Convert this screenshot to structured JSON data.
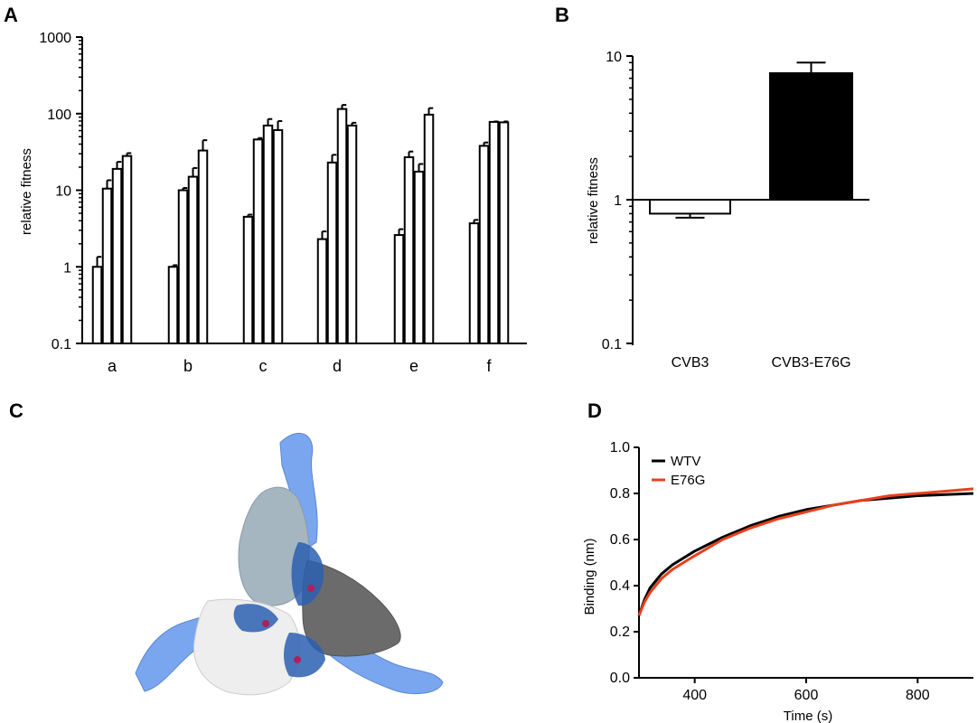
{
  "panel_labels": {
    "a": "A",
    "b": "B",
    "c": "C",
    "d": "D"
  },
  "chart_data": [
    {
      "id": "A",
      "type": "bar",
      "scale": "log",
      "ylabel": "relative fitness",
      "ylim": [
        0.1,
        1000
      ],
      "yticks": [
        {
          "v": 0.1,
          "label": "0.1"
        },
        {
          "v": 1,
          "label": "1"
        },
        {
          "v": 10,
          "label": "10"
        },
        {
          "v": 100,
          "label": "100"
        },
        {
          "v": 1000,
          "label": "1000"
        }
      ],
      "categories": [
        "a",
        "b",
        "c",
        "d",
        "e",
        "f"
      ],
      "groups": [
        {
          "values": [
            1.0,
            10.5,
            19,
            28
          ],
          "errors": [
            1.35,
            13.5,
            23.5,
            30.5
          ]
        },
        {
          "values": [
            1.0,
            10.0,
            15,
            33
          ],
          "errors": [
            1.05,
            10.7,
            19.5,
            45
          ]
        },
        {
          "values": [
            4.5,
            46,
            70,
            61
          ],
          "errors": [
            4.8,
            48,
            85,
            80
          ]
        },
        {
          "values": [
            2.3,
            23,
            115,
            70
          ],
          "errors": [
            2.9,
            29,
            130,
            76
          ]
        },
        {
          "values": [
            2.6,
            27,
            17.5,
            97
          ],
          "errors": [
            3.1,
            32,
            22,
            118
          ]
        },
        {
          "values": [
            3.7,
            38,
            78,
            77
          ],
          "errors": [
            4.1,
            42,
            79,
            79
          ]
        }
      ],
      "grid": false
    },
    {
      "id": "B",
      "type": "bar",
      "scale": "log",
      "ylabel": "relative fitness",
      "ylim": [
        0.1,
        10
      ],
      "baseline": 1,
      "yticks": [
        {
          "v": 0.1,
          "label": "0.1"
        },
        {
          "v": 1,
          "label": "1"
        },
        {
          "v": 10,
          "label": "10"
        }
      ],
      "categories": [
        "CVB3",
        "CVB3-E76G"
      ],
      "values": [
        0.8,
        7.6
      ],
      "errors": [
        0.75,
        9.0
      ],
      "colors": [
        "#ffffff",
        "#000000"
      ],
      "grid": false
    },
    {
      "id": "D",
      "type": "line",
      "xlabel": "Time (s)",
      "ylabel": "Binding (nm)",
      "xlim": [
        300,
        900
      ],
      "ylim": [
        0.0,
        1.0
      ],
      "xticks": [
        {
          "v": 400,
          "label": "400"
        },
        {
          "v": 600,
          "label": "600"
        },
        {
          "v": 800,
          "label": "800"
        }
      ],
      "yticks": [
        {
          "v": 0.0,
          "label": "0.0"
        },
        {
          "v": 0.2,
          "label": "0.2"
        },
        {
          "v": 0.4,
          "label": "0.4"
        },
        {
          "v": 0.6,
          "label": "0.6"
        },
        {
          "v": 0.8,
          "label": "0.8"
        },
        {
          "v": 1.0,
          "label": "1.0"
        }
      ],
      "legend_position": "top-left",
      "series": [
        {
          "name": "WTV",
          "color": "#000000",
          "x": [
            300,
            310,
            320,
            340,
            360,
            380,
            400,
            450,
            500,
            550,
            600,
            650,
            700,
            750,
            800,
            850,
            900
          ],
          "y": [
            0.27,
            0.34,
            0.39,
            0.45,
            0.49,
            0.52,
            0.55,
            0.61,
            0.66,
            0.7,
            0.73,
            0.75,
            0.77,
            0.78,
            0.79,
            0.795,
            0.8
          ]
        },
        {
          "name": "E76G",
          "color": "#e8401c",
          "x": [
            300,
            310,
            320,
            340,
            360,
            380,
            400,
            450,
            500,
            550,
            600,
            650,
            700,
            750,
            800,
            850,
            900
          ],
          "y": [
            0.27,
            0.33,
            0.37,
            0.43,
            0.47,
            0.5,
            0.53,
            0.6,
            0.65,
            0.69,
            0.72,
            0.75,
            0.77,
            0.79,
            0.8,
            0.81,
            0.82
          ]
        }
      ],
      "grid": false
    }
  ],
  "structure_image": {
    "icon": "trimer-protein-structure-icon",
    "colors": {
      "chain_light": "#eeeeee",
      "chain_mid": "#a6b6c0",
      "chain_dark": "#6b6b6b",
      "arm_blue": "#7aa6ef",
      "overlap_blue": "#2c5fb0",
      "marker": "#b0205a"
    }
  }
}
